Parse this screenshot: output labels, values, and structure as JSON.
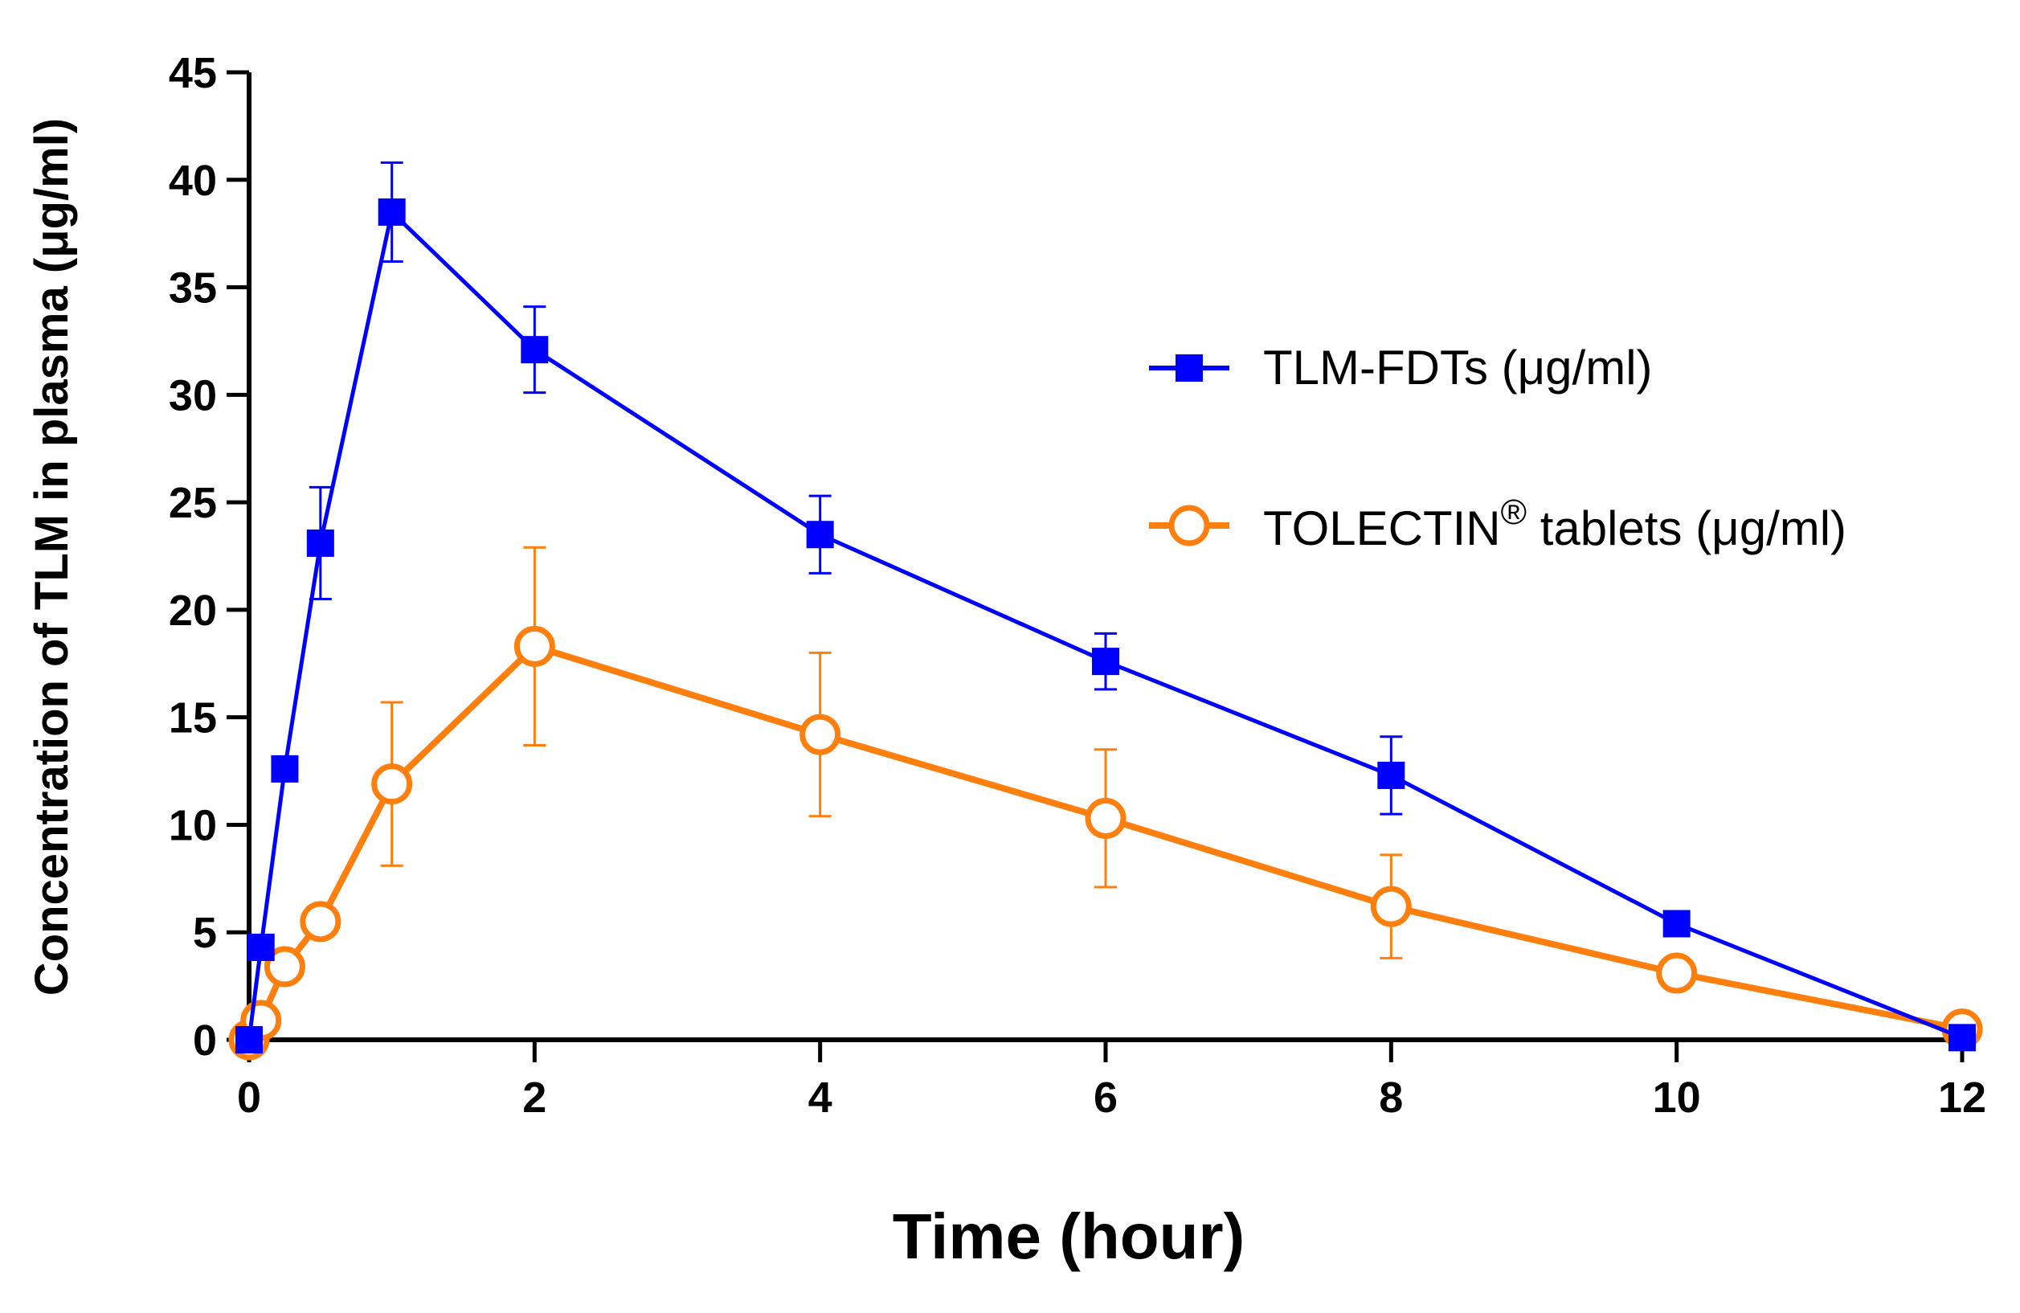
{
  "chart_data": {
    "type": "line",
    "title": "",
    "xlabel": "Time (hour)",
    "ylabel": "Concentration of TLM in plasma (μg/ml)",
    "xlim": [
      0,
      12
    ],
    "ylim": [
      0,
      45
    ],
    "x_ticks": [
      0,
      2,
      4,
      6,
      8,
      10,
      12
    ],
    "y_ticks": [
      0,
      5,
      10,
      15,
      20,
      25,
      30,
      35,
      40,
      45
    ],
    "grid": false,
    "legend_position": "upper-right",
    "series": [
      {
        "name": "TLM-FDTs  (μg/ml)",
        "color": "#0000ff",
        "marker": "square",
        "x": [
          0,
          0.083,
          0.25,
          0.5,
          1,
          2,
          4,
          6,
          8,
          10,
          12
        ],
        "y": [
          0,
          4.3,
          12.6,
          23.1,
          38.5,
          32.1,
          23.5,
          17.6,
          12.3,
          5.4,
          0.1
        ],
        "error": [
          0,
          0,
          0,
          2.6,
          2.3,
          2.0,
          1.8,
          1.3,
          1.8,
          0,
          0
        ]
      },
      {
        "name": "TOLECTIN",
        "name_suffix": "®",
        "name_tail": " tablets (μg/ml)",
        "color": "#ff7f0e",
        "marker": "open-circle",
        "x": [
          0,
          0.083,
          0.25,
          0.5,
          1,
          2,
          4,
          6,
          8,
          10,
          12
        ],
        "y": [
          0,
          0.9,
          3.4,
          5.5,
          11.9,
          18.3,
          14.2,
          10.3,
          6.2,
          3.1,
          0.5
        ],
        "error": [
          0,
          0,
          0.7,
          0,
          3.8,
          4.6,
          3.8,
          3.2,
          2.4,
          0,
          0
        ]
      }
    ]
  }
}
